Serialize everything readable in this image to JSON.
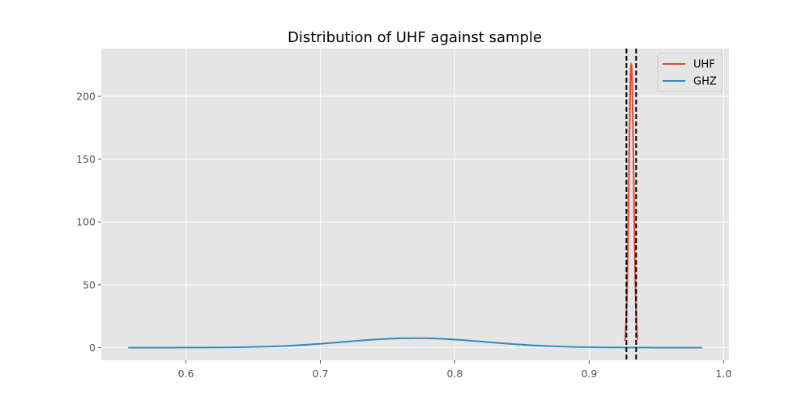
{
  "chart_data": {
    "type": "line",
    "title": "Distribution of UHF against sample",
    "xlabel": "",
    "ylabel": "",
    "xlim": [
      0.537,
      1.004
    ],
    "ylim": [
      -10,
      238
    ],
    "xticks": [
      0.6,
      0.7,
      0.8,
      0.9,
      1.0
    ],
    "xtick_labels": [
      "0.6",
      "0.7",
      "0.8",
      "0.9",
      "1.0"
    ],
    "yticks": [
      0,
      50,
      100,
      150,
      200
    ],
    "ytick_labels": [
      "0",
      "50",
      "100",
      "150",
      "200"
    ],
    "grid": true,
    "legend_position": "top-right",
    "series": [
      {
        "name": "UHF",
        "color": "#E24A33",
        "kind": "normal_pdf",
        "mean": 0.9313,
        "std": 0.00176,
        "x_range": [
          0.9265,
          0.936
        ],
        "peak": 226
      },
      {
        "name": "GHZ",
        "color": "#348ABD",
        "kind": "normal_pdf",
        "mean": 0.77,
        "std": 0.0525,
        "x_range": [
          0.557,
          0.984
        ],
        "peak": 7.6
      }
    ],
    "vlines": [
      {
        "x": 0.9277,
        "style": "dashed",
        "color": "#000000"
      },
      {
        "x": 0.9349,
        "style": "dashed",
        "color": "#000000"
      }
    ]
  }
}
